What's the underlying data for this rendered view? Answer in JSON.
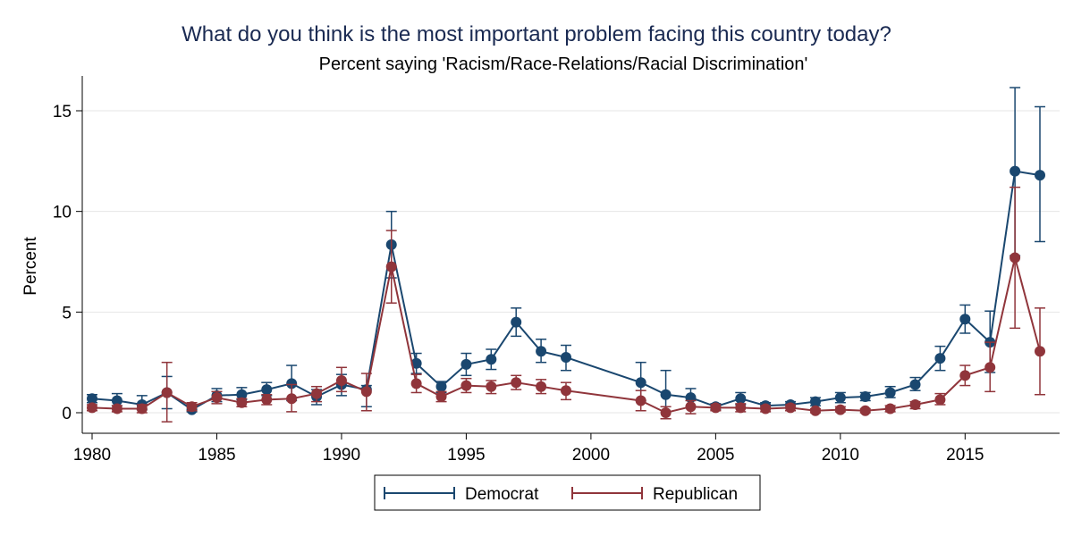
{
  "chart_data": {
    "type": "line",
    "title": "What do you think is the most important problem facing this country today?",
    "subtitle": "Percent saying 'Racism/Race-Relations/Racial Discrimination'",
    "xlabel": "",
    "ylabel": "Percent",
    "xlim": [
      1980,
      2018
    ],
    "ylim": [
      -1,
      16.5
    ],
    "xticks": [
      "1980",
      "1985",
      "1990",
      "1995",
      "2000",
      "2005",
      "2010",
      "2015"
    ],
    "yticks": [
      "0",
      "5",
      "10",
      "15"
    ],
    "grid": "horizontal",
    "legend_position": "bottom",
    "colors": {
      "democrat": "#1a476f",
      "republican": "#90353b",
      "grid": "#e6e6e6",
      "axis": "#000000"
    },
    "series": [
      {
        "name": "Democrat",
        "color": "#1a476f",
        "points": [
          {
            "x": 1980,
            "y": 0.7,
            "lo": 0.5,
            "hi": 0.9
          },
          {
            "x": 1981,
            "y": 0.6,
            "lo": 0.35,
            "hi": 0.95
          },
          {
            "x": 1982,
            "y": 0.4,
            "lo": 0.15,
            "hi": 0.85
          },
          {
            "x": 1983,
            "y": 1.0,
            "lo": 0.2,
            "hi": 1.8
          },
          {
            "x": 1984,
            "y": 0.15,
            "lo": 0.05,
            "hi": 0.4
          },
          {
            "x": 1985,
            "y": 0.85,
            "lo": 0.55,
            "hi": 1.2
          },
          {
            "x": 1986,
            "y": 0.9,
            "lo": 0.65,
            "hi": 1.25
          },
          {
            "x": 1987,
            "y": 1.15,
            "lo": 0.85,
            "hi": 1.5
          },
          {
            "x": 1988,
            "y": 1.45,
            "lo": 0.6,
            "hi": 2.35
          },
          {
            "x": 1989,
            "y": 0.8,
            "lo": 0.4,
            "hi": 1.15
          },
          {
            "x": 1990,
            "y": 1.4,
            "lo": 0.85,
            "hi": 1.9
          },
          {
            "x": 1991,
            "y": 1.15,
            "lo": 0.3,
            "hi": 1.35
          },
          {
            "x": 1992,
            "y": 8.35,
            "lo": 6.7,
            "hi": 10.0
          },
          {
            "x": 1993,
            "y": 2.45,
            "lo": 1.95,
            "hi": 2.95
          },
          {
            "x": 1994,
            "y": 1.3,
            "lo": 1.0,
            "hi": 1.55
          },
          {
            "x": 1995,
            "y": 2.4,
            "lo": 1.85,
            "hi": 2.95
          },
          {
            "x": 1996,
            "y": 2.65,
            "lo": 2.15,
            "hi": 3.15
          },
          {
            "x": 1997,
            "y": 4.5,
            "lo": 3.8,
            "hi": 5.2
          },
          {
            "x": 1998,
            "y": 3.05,
            "lo": 2.5,
            "hi": 3.65
          },
          {
            "x": 1999,
            "y": 2.75,
            "lo": 2.1,
            "hi": 3.35
          },
          {
            "x": 2002,
            "y": 1.5,
            "lo": 0.6,
            "hi": 2.5
          },
          {
            "x": 2003,
            "y": 0.9,
            "lo": -0.3,
            "hi": 2.1
          },
          {
            "x": 2004,
            "y": 0.75,
            "lo": 0.3,
            "hi": 1.2
          },
          {
            "x": 2005,
            "y": 0.3,
            "lo": 0.15,
            "hi": 0.45
          },
          {
            "x": 2006,
            "y": 0.7,
            "lo": 0.4,
            "hi": 1.0
          },
          {
            "x": 2007,
            "y": 0.35,
            "lo": 0.25,
            "hi": 0.5
          },
          {
            "x": 2008,
            "y": 0.4,
            "lo": 0.25,
            "hi": 0.55
          },
          {
            "x": 2009,
            "y": 0.55,
            "lo": 0.35,
            "hi": 0.75
          },
          {
            "x": 2010,
            "y": 0.75,
            "lo": 0.5,
            "hi": 1.0
          },
          {
            "x": 2011,
            "y": 0.8,
            "lo": 0.6,
            "hi": 1.0
          },
          {
            "x": 2012,
            "y": 1.0,
            "lo": 0.75,
            "hi": 1.3
          },
          {
            "x": 2013,
            "y": 1.4,
            "lo": 1.1,
            "hi": 1.75
          },
          {
            "x": 2014,
            "y": 2.7,
            "lo": 2.1,
            "hi": 3.3
          },
          {
            "x": 2015,
            "y": 4.65,
            "lo": 3.95,
            "hi": 5.35
          },
          {
            "x": 2016,
            "y": 3.5,
            "lo": 2.0,
            "hi": 5.05
          },
          {
            "x": 2017,
            "y": 12.0,
            "lo": 7.8,
            "hi": 16.15
          },
          {
            "x": 2018,
            "y": 11.8,
            "lo": 8.5,
            "hi": 15.2
          }
        ]
      },
      {
        "name": "Republican",
        "color": "#90353b",
        "points": [
          {
            "x": 1980,
            "y": 0.25,
            "lo": 0.1,
            "hi": 0.4
          },
          {
            "x": 1981,
            "y": 0.2,
            "lo": 0.05,
            "hi": 0.35
          },
          {
            "x": 1982,
            "y": 0.2,
            "lo": 0.0,
            "hi": 0.4
          },
          {
            "x": 1983,
            "y": 1.0,
            "lo": -0.45,
            "hi": 2.5
          },
          {
            "x": 1984,
            "y": 0.3,
            "lo": 0.1,
            "hi": 0.5
          },
          {
            "x": 1985,
            "y": 0.75,
            "lo": 0.45,
            "hi": 1.05
          },
          {
            "x": 1986,
            "y": 0.5,
            "lo": 0.3,
            "hi": 0.7
          },
          {
            "x": 1987,
            "y": 0.65,
            "lo": 0.4,
            "hi": 0.9
          },
          {
            "x": 1988,
            "y": 0.7,
            "lo": 0.05,
            "hi": 1.4
          },
          {
            "x": 1989,
            "y": 0.95,
            "lo": 0.55,
            "hi": 1.3
          },
          {
            "x": 1990,
            "y": 1.6,
            "lo": 1.05,
            "hi": 2.25
          },
          {
            "x": 1991,
            "y": 1.05,
            "lo": 0.1,
            "hi": 1.95
          },
          {
            "x": 1992,
            "y": 7.25,
            "lo": 5.45,
            "hi": 9.05
          },
          {
            "x": 1993,
            "y": 1.45,
            "lo": 1.0,
            "hi": 1.9
          },
          {
            "x": 1994,
            "y": 0.8,
            "lo": 0.55,
            "hi": 1.05
          },
          {
            "x": 1995,
            "y": 1.35,
            "lo": 1.0,
            "hi": 1.7
          },
          {
            "x": 1996,
            "y": 1.3,
            "lo": 0.95,
            "hi": 1.6
          },
          {
            "x": 1997,
            "y": 1.5,
            "lo": 1.15,
            "hi": 1.85
          },
          {
            "x": 1998,
            "y": 1.3,
            "lo": 0.95,
            "hi": 1.65
          },
          {
            "x": 1999,
            "y": 1.1,
            "lo": 0.65,
            "hi": 1.5
          },
          {
            "x": 2002,
            "y": 0.6,
            "lo": 0.1,
            "hi": 1.1
          },
          {
            "x": 2003,
            "y": 0.0,
            "lo": -0.3,
            "hi": 0.3
          },
          {
            "x": 2004,
            "y": 0.3,
            "lo": -0.05,
            "hi": 0.6
          },
          {
            "x": 2005,
            "y": 0.25,
            "lo": 0.1,
            "hi": 0.4
          },
          {
            "x": 2006,
            "y": 0.25,
            "lo": 0.05,
            "hi": 0.45
          },
          {
            "x": 2007,
            "y": 0.2,
            "lo": 0.05,
            "hi": 0.35
          },
          {
            "x": 2008,
            "y": 0.25,
            "lo": 0.1,
            "hi": 0.4
          },
          {
            "x": 2009,
            "y": 0.1,
            "lo": 0.0,
            "hi": 0.2
          },
          {
            "x": 2010,
            "y": 0.15,
            "lo": 0.05,
            "hi": 0.3
          },
          {
            "x": 2011,
            "y": 0.1,
            "lo": 0.0,
            "hi": 0.2
          },
          {
            "x": 2012,
            "y": 0.2,
            "lo": 0.05,
            "hi": 0.35
          },
          {
            "x": 2013,
            "y": 0.4,
            "lo": 0.2,
            "hi": 0.55
          },
          {
            "x": 2014,
            "y": 0.65,
            "lo": 0.4,
            "hi": 0.95
          },
          {
            "x": 2015,
            "y": 1.85,
            "lo": 1.35,
            "hi": 2.35
          },
          {
            "x": 2016,
            "y": 2.25,
            "lo": 1.05,
            "hi": 3.5
          },
          {
            "x": 2017,
            "y": 7.7,
            "lo": 4.2,
            "hi": 11.2
          },
          {
            "x": 2018,
            "y": 3.05,
            "lo": 0.9,
            "hi": 5.2
          }
        ]
      }
    ]
  }
}
